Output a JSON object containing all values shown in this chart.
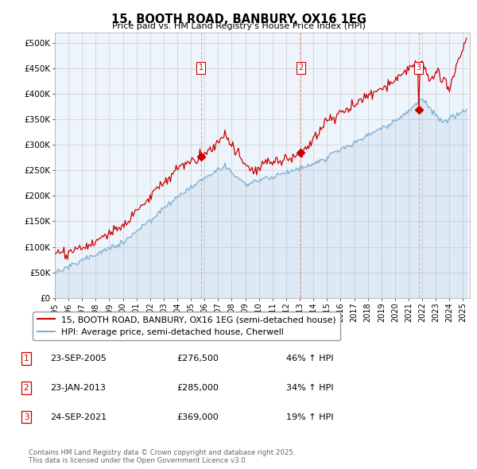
{
  "title": "15, BOOTH ROAD, BANBURY, OX16 1EG",
  "subtitle": "Price paid vs. HM Land Registry's House Price Index (HPI)",
  "ylim": [
    0,
    520000
  ],
  "yticks": [
    0,
    50000,
    100000,
    150000,
    200000,
    250000,
    300000,
    350000,
    400000,
    450000,
    500000
  ],
  "ytick_labels": [
    "£0",
    "£50K",
    "£100K",
    "£150K",
    "£200K",
    "£250K",
    "£300K",
    "£350K",
    "£400K",
    "£450K",
    "£500K"
  ],
  "hpi_color": "#7EB0D5",
  "price_color": "#CC0000",
  "vline_color": "#FF9999",
  "chart_bg": "#EEF4FB",
  "legend_label_price": "15, BOOTH ROAD, BANBURY, OX16 1EG (semi-detached house)",
  "legend_label_hpi": "HPI: Average price, semi-detached house, Cherwell",
  "sale1_date_str": "23-SEP-2005",
  "sale1_year": 2005.75,
  "sale1_price": 276500,
  "sale1_pct": "46%",
  "sale2_date_str": "23-JAN-2013",
  "sale2_year": 2013.06,
  "sale2_price": 285000,
  "sale2_pct": "34%",
  "sale3_date_str": "24-SEP-2021",
  "sale3_year": 2021.75,
  "sale3_price": 369000,
  "sale3_pct": "19%",
  "footer": "Contains HM Land Registry data © Crown copyright and database right 2025.\nThis data is licensed under the Open Government Licence v3.0.",
  "background_color": "#ffffff",
  "grid_color": "#cccccc"
}
